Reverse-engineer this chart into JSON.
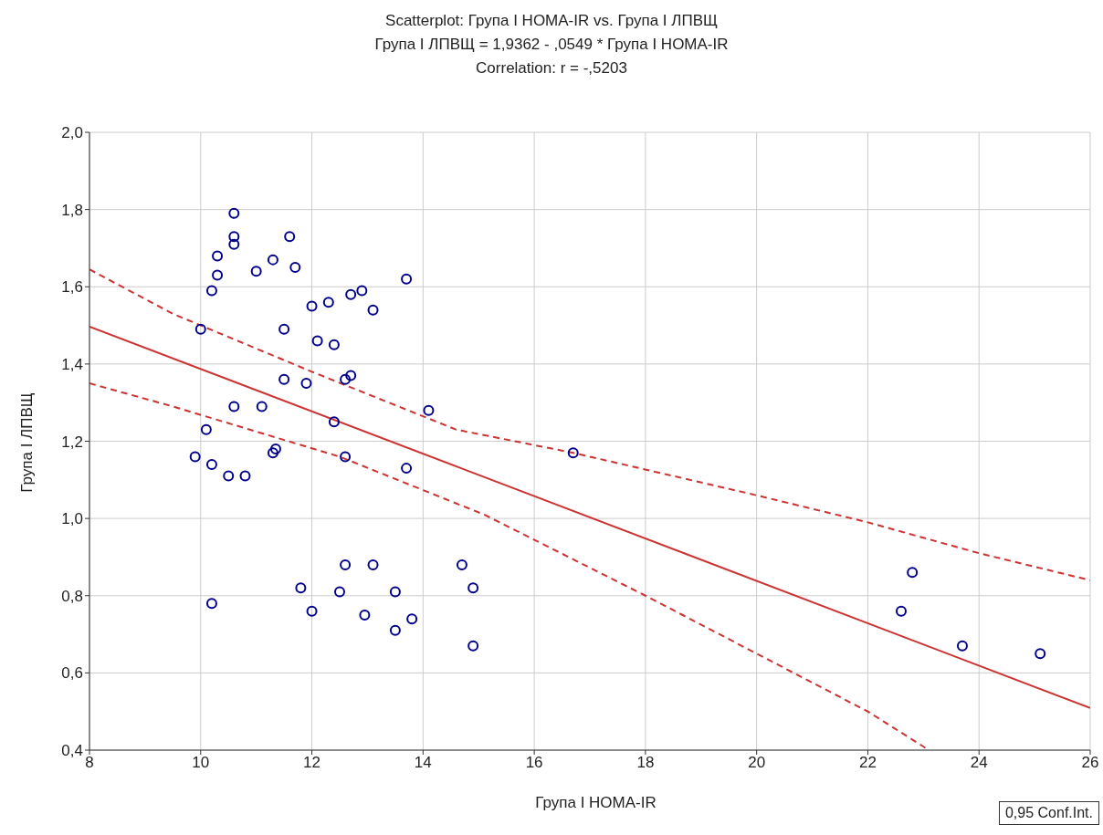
{
  "chart_data": {
    "type": "scatter",
    "title": "Scatterplot: Група I HOMA-IR vs. Група I ЛПВЩ",
    "subtitle": "Група I ЛПВЩ = 1,9362 - ,0549  * Група I HOMA-IR",
    "xlabel": "Група I HOMA-IR",
    "ylabel": "Група I ЛПВЩ",
    "annotations": [
      "Correlation: r = -,5203",
      "0,95 Conf.Int."
    ],
    "xlim": [
      8,
      26
    ],
    "xticks": [
      8,
      10,
      12,
      14,
      16,
      18,
      20,
      22,
      24,
      26
    ],
    "ylim": [
      0.4,
      2.0
    ],
    "yticks": [
      {
        "value": 0.4,
        "label": "0,4"
      },
      {
        "value": 0.6,
        "label": "0,6"
      },
      {
        "value": 0.8,
        "label": "0,8"
      },
      {
        "value": 1.0,
        "label": "1,0"
      },
      {
        "value": 1.2,
        "label": "1,2"
      },
      {
        "value": 1.4,
        "label": "1,4"
      },
      {
        "value": 1.6,
        "label": "1,6"
      },
      {
        "value": 1.8,
        "label": "1,8"
      },
      {
        "value": 2.0,
        "label": "2,0"
      }
    ],
    "grid": true,
    "marker": "circle",
    "series": [
      {
        "color": "#00008b",
        "x": [
          10.6,
          10.6,
          10.6,
          11.6,
          10.3,
          10.3,
          10.2,
          11.0,
          11.3,
          11.7,
          13.7,
          12.9,
          12.7,
          12.3,
          12.0,
          13.1,
          10.0,
          11.5,
          12.1,
          12.4,
          12.7,
          12.6,
          11.5,
          11.9,
          14.1,
          10.6,
          11.1,
          12.4,
          10.1,
          16.7,
          11.3,
          11.35,
          9.9,
          12.6,
          10.2,
          13.7,
          10.5,
          10.8,
          12.6,
          13.1,
          14.7,
          22.8,
          11.8,
          14.9,
          12.5,
          13.5,
          10.2,
          12.0,
          22.6,
          12.95,
          13.8,
          13.5,
          23.7,
          14.9,
          25.1
        ],
        "values": [
          1.79,
          1.73,
          1.71,
          1.73,
          1.68,
          1.63,
          1.59,
          1.64,
          1.67,
          1.65,
          1.62,
          1.59,
          1.58,
          1.56,
          1.55,
          1.54,
          1.49,
          1.49,
          1.46,
          1.45,
          1.37,
          1.36,
          1.36,
          1.35,
          1.28,
          1.29,
          1.29,
          1.25,
          1.23,
          1.17,
          1.17,
          1.18,
          1.16,
          1.16,
          1.14,
          1.13,
          1.11,
          1.11,
          0.88,
          0.88,
          0.88,
          0.86,
          0.82,
          0.82,
          0.81,
          0.81,
          0.78,
          0.76,
          0.76,
          0.75,
          0.74,
          0.71,
          0.67,
          0.67,
          0.65
        ]
      },
      {
        "type": "line",
        "color": "#cc3333",
        "marker": "none",
        "line_style": "solid",
        "x": [
          8,
          26
        ],
        "values": [
          1.497,
          0.509
        ]
      },
      {
        "type": "line",
        "color": "#cc3333",
        "marker": "none",
        "line_style": "dashed",
        "x": [
          8,
          9.5,
          12,
          14.6,
          16.7,
          20,
          22,
          24,
          26
        ],
        "values": [
          1.645,
          1.53,
          1.38,
          1.23,
          1.17,
          1.06,
          0.99,
          0.91,
          0.84
        ]
      },
      {
        "type": "line",
        "color": "#cc3333",
        "marker": "none",
        "line_style": "dashed",
        "x": [
          8,
          9.5,
          12.5,
          15.1,
          18,
          20,
          22,
          23.1
        ],
        "values": [
          1.35,
          1.29,
          1.16,
          1.01,
          0.8,
          0.65,
          0.5,
          0.4
        ]
      }
    ]
  }
}
